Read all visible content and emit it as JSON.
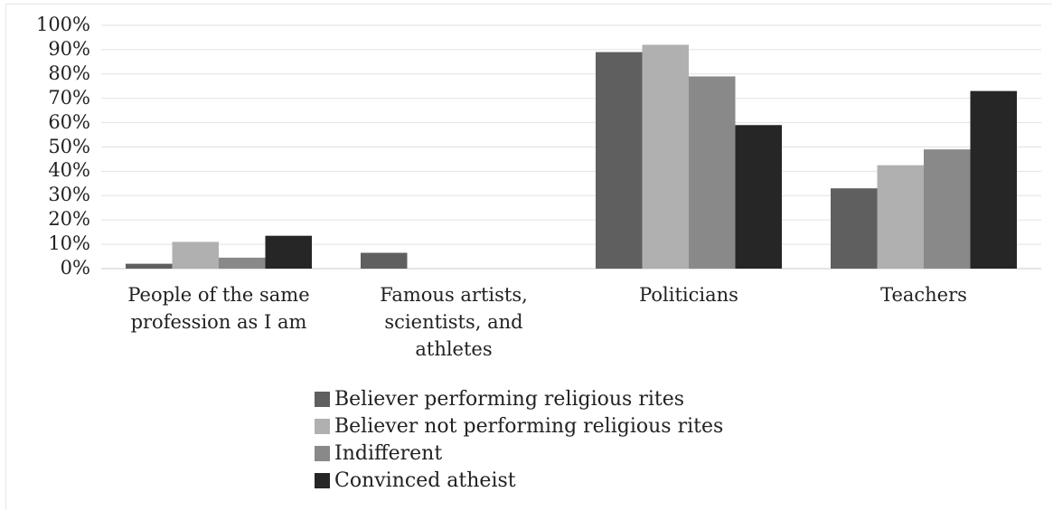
{
  "chart_data": {
    "type": "bar",
    "categories": [
      [
        "People of the same",
        "profession as I am"
      ],
      [
        "Famous artists,",
        "scientists, and",
        "athletes"
      ],
      [
        "Politicians"
      ],
      [
        "Teachers"
      ]
    ],
    "series": [
      {
        "name": "Believer performing religious rites",
        "color": "#5f5f5f",
        "values": [
          2,
          6.5,
          89,
          33
        ]
      },
      {
        "name": "Believer not performing religious rites",
        "color": "#b0b0b0",
        "values": [
          11,
          0,
          92,
          42.5
        ]
      },
      {
        "name": "Indifferent",
        "color": "#898989",
        "values": [
          4.5,
          0,
          79,
          49
        ]
      },
      {
        "name": "Convinced atheist",
        "color": "#262626",
        "values": [
          13.5,
          0,
          59,
          73
        ]
      }
    ],
    "yticks": [
      "0%",
      "10%",
      "20%",
      "30%",
      "40%",
      "50%",
      "60%",
      "70%",
      "80%",
      "90%",
      "100%"
    ],
    "ylim": [
      0,
      100
    ],
    "title": "",
    "xlabel": "",
    "ylabel": "",
    "grid": true,
    "legend_position": "bottom"
  }
}
